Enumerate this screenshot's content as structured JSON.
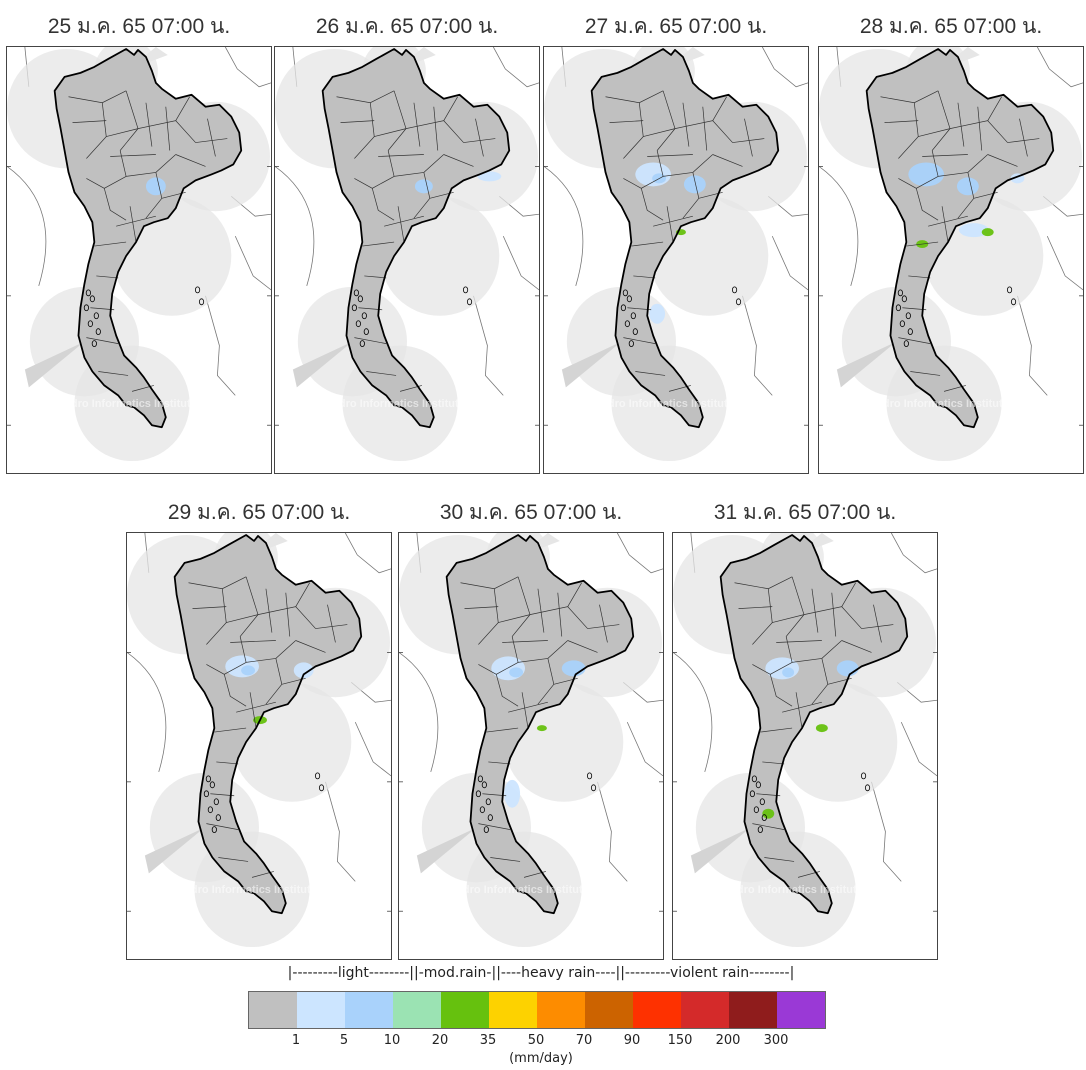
{
  "panels": [
    {
      "title": "25 ม.ค. 65 07:00 น.",
      "watermark": "Hydro Informatics Institute (HII)"
    },
    {
      "title": "26 ม.ค. 65 07:00 น.",
      "watermark": "Hydro Informatics Institute (HII)"
    },
    {
      "title": "27 ม.ค. 65 07:00 น.",
      "watermark": "Hydro Informatics Institute (HII)"
    },
    {
      "title": "28 ม.ค. 65 07:00 น.",
      "watermark": "Hydro Informatics Institute (HII)"
    },
    {
      "title": "29 ม.ค. 65 07:00 น.",
      "watermark": "Hydro Informatics Institute (HII)"
    },
    {
      "title": "30 ม.ค. 65 07:00 น.",
      "watermark": "Hydro Informatics Institute (HII)"
    },
    {
      "title": "31 ม.ค. 65 07:00 น.",
      "watermark": "Hydro Informatics Institute (HII)"
    }
  ],
  "legend": {
    "header": "|---------light--------||-mod.rain-||----heavy rain----||---------violent rain--------|",
    "unit": "(mm/day)",
    "colors": [
      "#c0c0c0",
      "#cce5ff",
      "#a9d2fb",
      "#9be3b3",
      "#66c10e",
      "#fdd200",
      "#fd8c00",
      "#cc6300",
      "#fe3100",
      "#d42a2a",
      "#8f1c1c",
      "#9a39d6"
    ],
    "ticks": [
      "1",
      "5",
      "10",
      "20",
      "35",
      "50",
      "70",
      "90",
      "150",
      "200",
      "300"
    ]
  }
}
